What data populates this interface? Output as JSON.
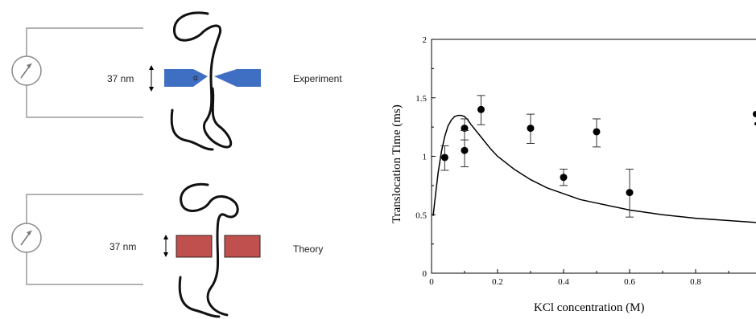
{
  "schematic": {
    "top": {
      "size_label": "37 nm",
      "mode_label": "Experiment",
      "angle_label": "α",
      "pore_color": "#3f6fc2"
    },
    "bottom": {
      "size_label": "37 nm",
      "mode_label": "Theory",
      "pore_color": "#c0504d"
    },
    "meter_icon": "ammeter-icon"
  },
  "chart_data": {
    "type": "scatter",
    "title": "",
    "xlabel": "KCl concentration (M)",
    "ylabel": "Translocation Time (ms)",
    "xlim": [
      0,
      1.0
    ],
    "ylim": [
      0,
      2
    ],
    "xticks": [
      0,
      0.2,
      0.4,
      0.6,
      0.8
    ],
    "xtick_labels": [
      "0",
      "0.2",
      "0.4",
      "0.6",
      "0.8"
    ],
    "yticks": [
      0,
      0.5,
      1,
      1.5,
      2
    ],
    "ytick_labels": [
      "0",
      "0.5",
      "1",
      "1.5",
      "2"
    ],
    "grid": false,
    "series": [
      {
        "type": "scatter",
        "points": [
          {
            "x": 0.04,
            "y": 0.99,
            "err_low": 0.88,
            "err_high": 1.09
          },
          {
            "x": 0.1,
            "y": 1.24,
            "err_low": 1.14,
            "err_high": 1.32
          },
          {
            "x": 0.1,
            "y": 1.05,
            "err_low": 0.91,
            "err_high": 1.22
          },
          {
            "x": 0.15,
            "y": 1.4,
            "err_low": 1.27,
            "err_high": 1.52
          },
          {
            "x": 0.3,
            "y": 1.24,
            "err_low": 1.11,
            "err_high": 1.36
          },
          {
            "x": 0.4,
            "y": 0.82,
            "err_low": 0.75,
            "err_high": 0.89
          },
          {
            "x": 0.5,
            "y": 1.21,
            "err_low": 1.08,
            "err_high": 1.32
          },
          {
            "x": 0.6,
            "y": 0.69,
            "err_low": 0.48,
            "err_high": 0.89
          }
        ]
      },
      {
        "type": "line",
        "x": [
          0.005,
          0.01,
          0.02,
          0.03,
          0.04,
          0.05,
          0.06,
          0.07,
          0.08,
          0.09,
          0.1,
          0.11,
          0.12,
          0.14,
          0.16,
          0.18,
          0.2,
          0.25,
          0.3,
          0.35,
          0.4,
          0.45,
          0.5,
          0.6,
          0.7,
          0.8,
          0.9,
          1.0
        ],
        "y": [
          0.49,
          0.62,
          0.86,
          1.04,
          1.17,
          1.26,
          1.31,
          1.34,
          1.35,
          1.35,
          1.34,
          1.31,
          1.27,
          1.2,
          1.13,
          1.06,
          1.0,
          0.89,
          0.8,
          0.73,
          0.68,
          0.63,
          0.6,
          0.54,
          0.5,
          0.47,
          0.45,
          0.43
        ]
      }
    ]
  }
}
